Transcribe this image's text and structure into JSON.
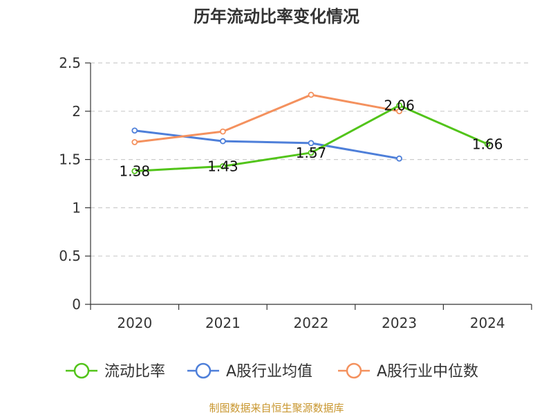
{
  "chart_data": {
    "type": "line",
    "title": "历年流动比率变化情况",
    "categories": [
      "2020",
      "2021",
      "2022",
      "2023",
      "2024"
    ],
    "y_ticks": [
      "0",
      "0.5",
      "1",
      "1.5",
      "2",
      "2.5"
    ],
    "ylim": [
      0,
      2.5
    ],
    "grid": true,
    "legend_position": "bottom",
    "series": [
      {
        "name": "流动比率",
        "color": "#52c41a",
        "values": [
          1.38,
          1.43,
          1.57,
          2.06,
          1.66
        ],
        "labels": [
          "1.38",
          "1.43",
          "1.57",
          "2.06",
          "1.66"
        ]
      },
      {
        "name": "A股行业均值",
        "color": "#4e7fd9",
        "values": [
          1.8,
          1.69,
          1.67,
          1.51,
          null
        ]
      },
      {
        "name": "A股行业中位数",
        "color": "#f4915e",
        "values": [
          1.68,
          1.79,
          2.17,
          2.0,
          null
        ]
      }
    ]
  },
  "source_text": "制图数据来自恒生聚源数据库",
  "source_color": "#c8962e"
}
